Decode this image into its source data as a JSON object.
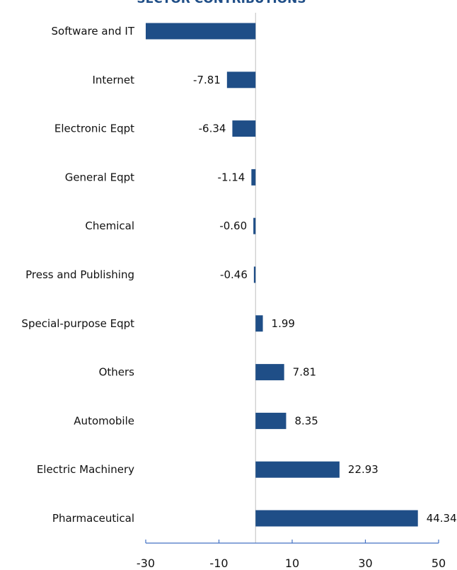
{
  "chart_data": {
    "type": "bar",
    "orientation": "horizontal",
    "title": "SECTOR CONTRIBUTIONS",
    "categories": [
      "Software and IT",
      "Internet",
      "Electronic Eqpt",
      "General Eqpt",
      "Chemical",
      "Press and Publishing",
      "Special-purpose Eqpt",
      "Others",
      "Automobile",
      "Electric Machinery",
      "Pharmaceutical"
    ],
    "values": [
      -30.0,
      -7.81,
      -6.34,
      -1.14,
      -0.6,
      -0.46,
      1.99,
      7.81,
      8.35,
      22.93,
      44.34
    ],
    "value_labels": [
      "",
      "-7.81",
      "-6.34",
      "-1.14",
      "-0.60",
      "-0.46",
      "1.99",
      "7.81",
      "8.35",
      "22.93",
      "44.34"
    ],
    "xlim": [
      -30,
      50
    ],
    "xticks": [
      -30,
      -10,
      10,
      30,
      50
    ],
    "xtick_labels": [
      "-30",
      "-10",
      "10",
      "30",
      "50"
    ],
    "grid": false,
    "colors": {
      "bar": "#1f4e87",
      "axis": "#4472c4",
      "zero_line": "#bfbfbf",
      "title": "#1f4e87"
    }
  }
}
